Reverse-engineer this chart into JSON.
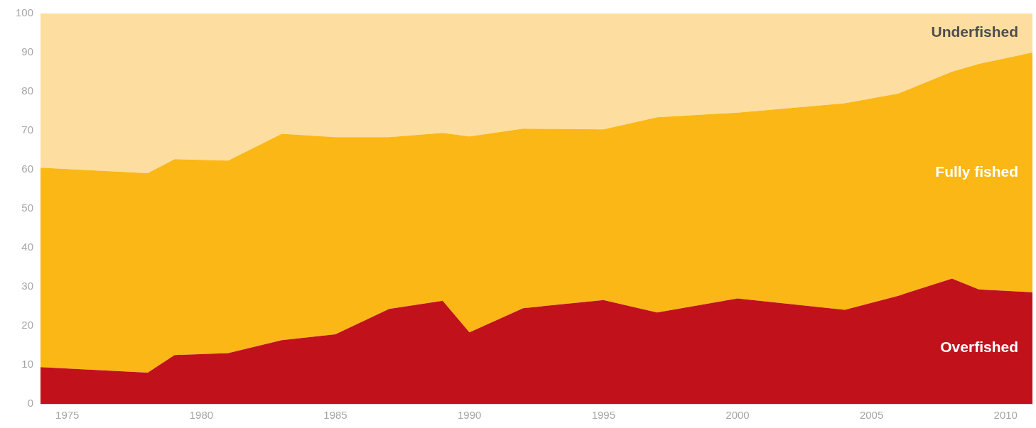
{
  "chart_data": {
    "type": "area",
    "stacked": true,
    "x": [
      1974,
      1978,
      1979,
      1981,
      1983,
      1985,
      1987,
      1989,
      1990,
      1992,
      1995,
      1997,
      2000,
      2004,
      2006,
      2008,
      2009,
      2011
    ],
    "series": [
      {
        "name": "Overfished",
        "color": "#c1121c",
        "values": [
          9.4,
          8.0,
          12.5,
          13.0,
          16.3,
          17.8,
          24.3,
          26.4,
          18.3,
          24.5,
          26.6,
          23.4,
          27.0,
          24.1,
          27.7,
          32.1,
          29.3,
          28.6
        ]
      },
      {
        "name": "Fully fished",
        "color": "#fbb715",
        "values": [
          51.1,
          51.1,
          50.2,
          49.3,
          52.9,
          50.5,
          44.0,
          43.0,
          50.2,
          46.0,
          43.7,
          50.0,
          47.6,
          52.9,
          51.8,
          53.0,
          57.8,
          61.4
        ]
      },
      {
        "name": "Underfished",
        "color": "#fddea0",
        "values": [
          39.5,
          40.9,
          37.3,
          37.7,
          30.8,
          31.7,
          31.7,
          30.6,
          31.5,
          29.5,
          29.7,
          26.6,
          25.4,
          23.0,
          20.5,
          14.9,
          12.9,
          10.0
        ]
      }
    ],
    "xlim": [
      1974,
      2011
    ],
    "xticks": [
      1975,
      1980,
      1985,
      1990,
      1995,
      2000,
      2005,
      2010
    ],
    "ylim": [
      0,
      100
    ],
    "yticks": [
      0,
      10,
      20,
      30,
      40,
      50,
      60,
      70,
      80,
      90,
      100
    ],
    "grid": false,
    "legend": false,
    "marker": "none"
  }
}
